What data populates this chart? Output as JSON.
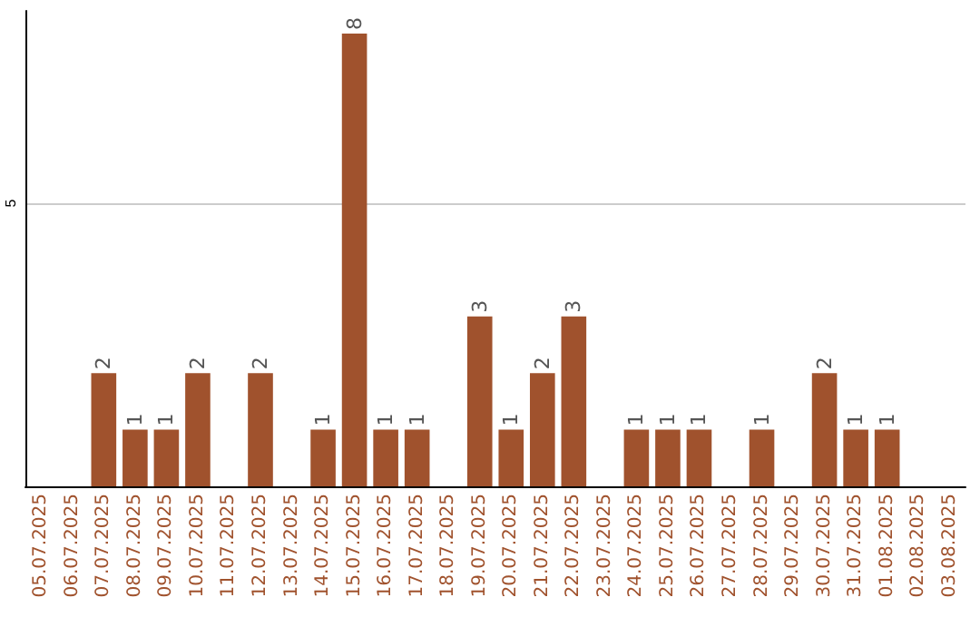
{
  "chart_data": {
    "type": "bar",
    "categories": [
      "05.07.2025",
      "06.07.2025",
      "07.07.2025",
      "08.07.2025",
      "09.07.2025",
      "10.07.2025",
      "11.07.2025",
      "12.07.2025",
      "13.07.2025",
      "14.07.2025",
      "15.07.2025",
      "16.07.2025",
      "17.07.2025",
      "18.07.2025",
      "19.07.2025",
      "20.07.2025",
      "21.07.2025",
      "22.07.2025",
      "23.07.2025",
      "24.07.2025",
      "25.07.2025",
      "26.07.2025",
      "27.07.2025",
      "28.07.2025",
      "29.07.2025",
      "30.07.2025",
      "31.07.2025",
      "01.08.2025",
      "02.08.2025",
      "03.08.2025"
    ],
    "values": [
      0,
      0,
      2,
      1,
      1,
      2,
      0,
      2,
      0,
      1,
      8,
      1,
      1,
      0,
      3,
      1,
      2,
      3,
      0,
      1,
      1,
      1,
      0,
      1,
      0,
      2,
      1,
      1,
      0,
      0
    ],
    "value_labels": [
      null,
      null,
      "2",
      "1",
      "1",
      "2",
      null,
      "2",
      null,
      "1",
      "8",
      "1",
      "1",
      null,
      "3",
      "1",
      "2",
      "3",
      null,
      "1",
      "1",
      "1",
      null,
      "1",
      null,
      "2",
      "1",
      "1",
      null,
      null
    ],
    "color": "#a0522d",
    "ylim": [
      0,
      8.4
    ],
    "yticks": [
      5
    ],
    "grid": "y"
  }
}
